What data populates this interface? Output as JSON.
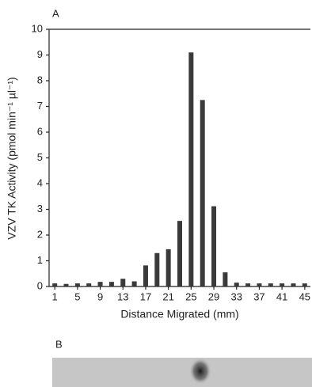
{
  "chart_data": {
    "type": "bar",
    "panel_label": "A",
    "x_label": "Distance Migrated (mm)",
    "y_label": "VZV TK Activity (pmol min⁻¹ µl⁻¹)",
    "x": [
      1,
      3,
      5,
      7,
      9,
      11,
      13,
      15,
      17,
      19,
      21,
      23,
      25,
      27,
      29,
      31,
      33,
      35,
      37,
      39,
      41,
      43,
      45
    ],
    "values": [
      0.12,
      0.1,
      0.12,
      0.12,
      0.18,
      0.18,
      0.3,
      0.2,
      0.82,
      1.3,
      1.45,
      2.55,
      9.1,
      7.25,
      3.12,
      0.55,
      0.15,
      0.12,
      0.12,
      0.12,
      0.12,
      0.12,
      0.12
    ],
    "color": "#3a3a3a",
    "xlim": [
      0,
      46
    ],
    "xticks": [
      1,
      5,
      9,
      13,
      17,
      21,
      25,
      29,
      33,
      37,
      41,
      45
    ],
    "ylim": [
      0,
      10
    ],
    "yticks": [
      0,
      1,
      2,
      3,
      4,
      5,
      6,
      7,
      8,
      9,
      10
    ]
  },
  "gel": {
    "label": "B"
  }
}
